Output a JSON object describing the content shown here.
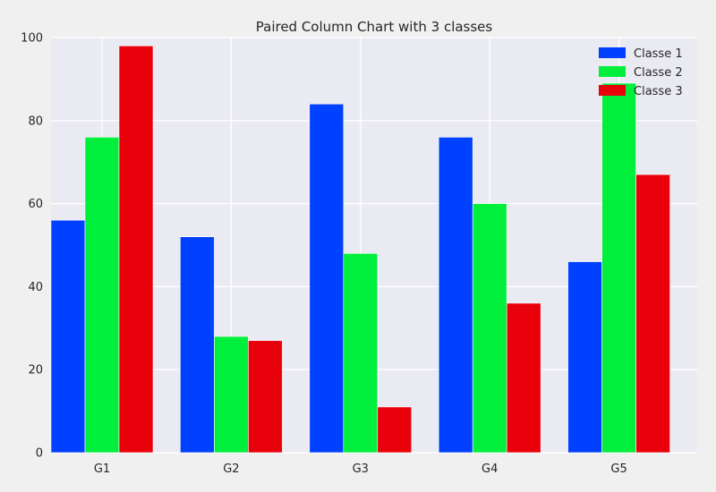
{
  "chart_data": {
    "type": "bar",
    "title": "Paired Column Chart with 3 classes",
    "xlabel": "",
    "ylabel": "",
    "categories": [
      "G1",
      "G2",
      "G3",
      "G4",
      "G5"
    ],
    "ylim": [
      0,
      100
    ],
    "yticks": [
      0,
      20,
      40,
      60,
      80,
      100
    ],
    "grid": true,
    "legend_position": "top-right",
    "series": [
      {
        "name": "Classe 1",
        "color": "#0040ff",
        "values": [
          56,
          52,
          84,
          76,
          46
        ]
      },
      {
        "name": "Classe 2",
        "color": "#00ee3c",
        "values": [
          76,
          28,
          48,
          60,
          89
        ]
      },
      {
        "name": "Classe 3",
        "color": "#e8000b",
        "values": [
          98,
          27,
          11,
          36,
          67
        ]
      }
    ]
  }
}
